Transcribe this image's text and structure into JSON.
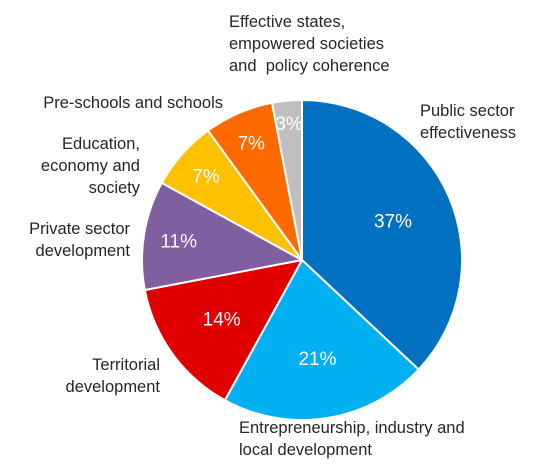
{
  "chart_data": {
    "type": "pie",
    "title": "",
    "categories": [
      "Public sector effectiveness",
      "Entrepreneurship, industry and local development",
      "Territorial development",
      "Private sector development",
      "Education, economy and society",
      "Pre-schools and schools",
      "Effective states, empowered societies and policy coherence"
    ],
    "values": [
      37,
      21,
      14,
      11,
      7,
      7,
      3
    ],
    "value_labels": [
      "37%",
      "21%",
      "14%",
      "11%",
      "7%",
      "7%",
      "3%"
    ],
    "label_lines": [
      [
        "Public sector",
        "effectiveness"
      ],
      [
        "Entrepreneurship, industry and",
        "local development"
      ],
      [
        "Territorial",
        "development"
      ],
      [
        "Private sector",
        "development"
      ],
      [
        "Education,",
        "economy and",
        "society"
      ],
      [
        "Pre-schools and schools"
      ],
      [
        "Effective states,",
        "empowered societies",
        "and  policy coherence"
      ]
    ],
    "colors": [
      "#0070C0",
      "#00B0F0",
      "#E00000",
      "#7F5FA0",
      "#FFC000",
      "#FF6A00",
      "#BFBFBF"
    ],
    "start_angle_deg": 0,
    "direction": "clockwise",
    "legend": "none"
  }
}
